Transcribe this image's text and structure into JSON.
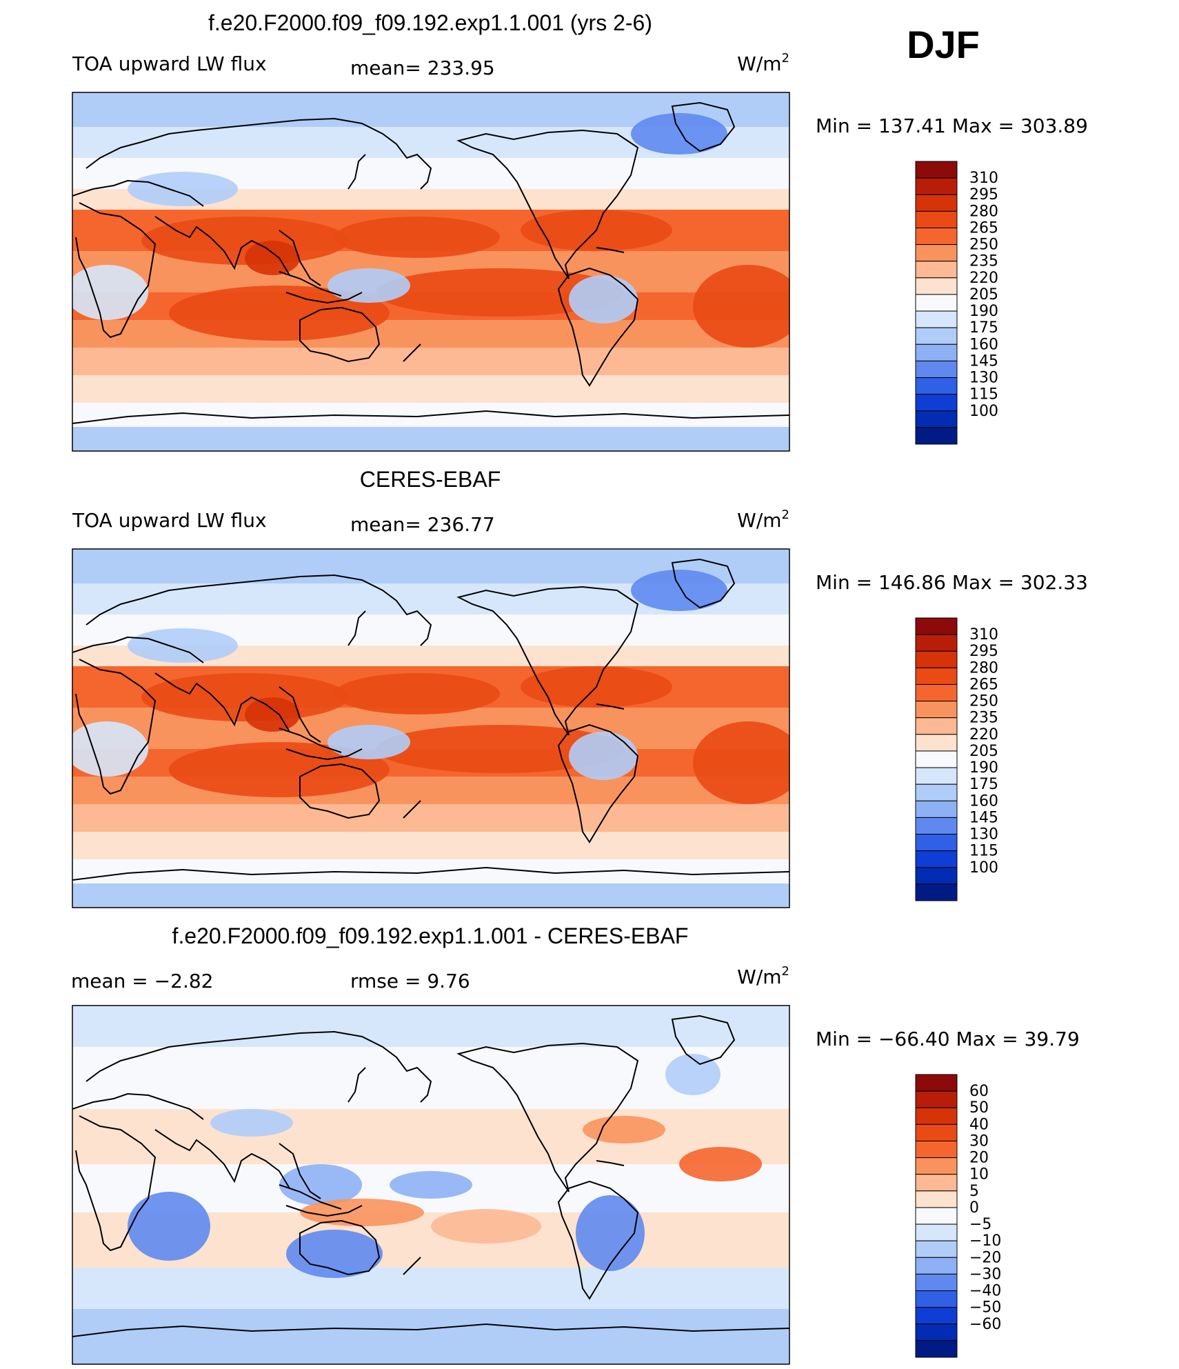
{
  "figure": {
    "season": "DJF",
    "units_prefix": "W/m",
    "units_sup": "2"
  },
  "panels": [
    {
      "title": "f.e20.F2000.f09_f09.192.exp1.1.001 (yrs 2-6)",
      "variable": "TOA upward LW flux",
      "stat1": "mean=  233.95",
      "stat2": "",
      "minmax": "Min  =  137.41  Max  =  303.89",
      "colorbar": {
        "levels": [
          "310",
          "295",
          "280",
          "265",
          "250",
          "235",
          "220",
          "205",
          "190",
          "175",
          "160",
          "145",
          "130",
          "115",
          "100"
        ],
        "colors": [
          "#8c0a0a",
          "#b81e07",
          "#d63308",
          "#ea4a14",
          "#f5662e",
          "#f9935e",
          "#fcb993",
          "#fde2cf",
          "#f7f9fc",
          "#d6e7fb",
          "#b0cdf8",
          "#8eb0f5",
          "#5f89ef",
          "#2f60e6",
          "#0f3ed6",
          "#022cb3",
          "#011b85"
        ]
      }
    },
    {
      "title": "CERES-EBAF",
      "variable": "TOA upward LW flux",
      "stat1": "mean=  236.77",
      "stat2": "",
      "minmax": "Min  =  146.86  Max  =  302.33",
      "colorbar": {
        "levels": [
          "310",
          "295",
          "280",
          "265",
          "250",
          "235",
          "220",
          "205",
          "190",
          "175",
          "160",
          "145",
          "130",
          "115",
          "100"
        ],
        "colors": [
          "#8c0a0a",
          "#b81e07",
          "#d63308",
          "#ea4a14",
          "#f5662e",
          "#f9935e",
          "#fcb993",
          "#fde2cf",
          "#f7f9fc",
          "#d6e7fb",
          "#b0cdf8",
          "#8eb0f5",
          "#5f89ef",
          "#2f60e6",
          "#0f3ed6",
          "#022cb3",
          "#011b85"
        ]
      }
    },
    {
      "title": "f.e20.F2000.f09_f09.192.exp1.1.001 - CERES-EBAF",
      "variable": "",
      "stat1": "mean  =    −2.82",
      "stat2": "rmse  =     9.76",
      "minmax": "Min  =  −66.40  Max  =    39.79",
      "colorbar": {
        "levels": [
          "60",
          "50",
          "40",
          "30",
          "20",
          "10",
          "5",
          "0",
          "−5",
          "−10",
          "−20",
          "−30",
          "−40",
          "−50",
          "−60"
        ],
        "colors": [
          "#8c0a0a",
          "#b81e07",
          "#d63308",
          "#ea4a14",
          "#f5662e",
          "#f9935e",
          "#fcb993",
          "#fde2cf",
          "#f7f9fc",
          "#d6e7fb",
          "#b0cdf8",
          "#8eb0f5",
          "#5f89ef",
          "#2f60e6",
          "#0f3ed6",
          "#022cb3",
          "#011b85"
        ]
      }
    }
  ]
}
